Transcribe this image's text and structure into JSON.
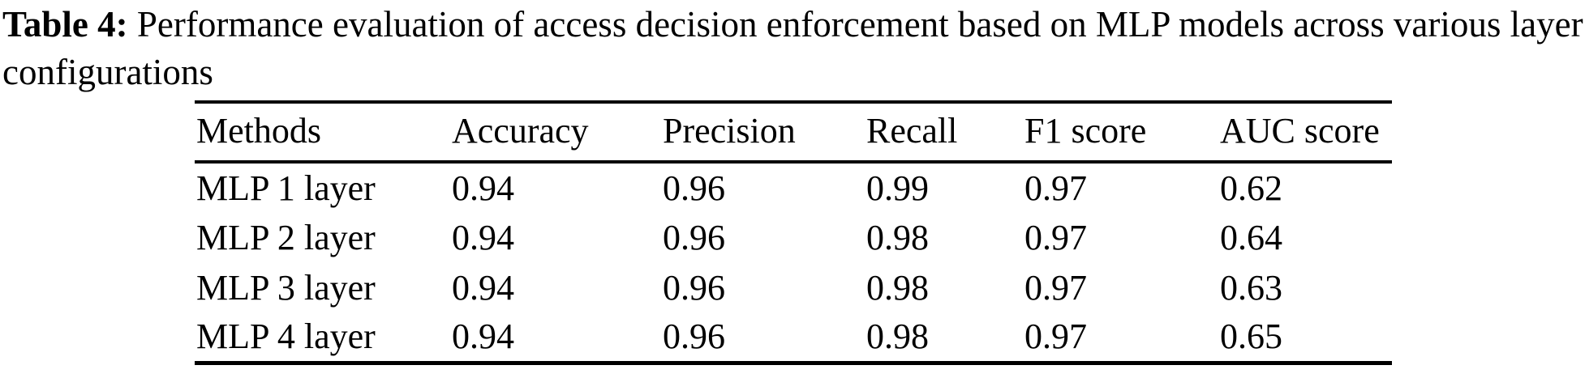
{
  "caption": {
    "label": "Table 4:",
    "text": " Performance evaluation of access decision enforcement based on MLP models across various layer configurations"
  },
  "table": {
    "columns": [
      "Methods",
      "Accuracy",
      "Precision",
      "Recall",
      "F1 score",
      "AUC score"
    ],
    "rows": [
      {
        "cells": [
          "MLP 1 layer",
          "0.94",
          "0.96",
          "0.99",
          "0.97",
          "0.62"
        ]
      },
      {
        "cells": [
          "MLP 2 layer",
          "0.94",
          "0.96",
          "0.98",
          "0.97",
          "0.64"
        ]
      },
      {
        "cells": [
          "MLP 3 layer",
          "0.94",
          "0.96",
          "0.98",
          "0.97",
          "0.63"
        ]
      },
      {
        "cells": [
          "MLP 4 layer",
          "0.94",
          "0.96",
          "0.98",
          "0.97",
          "0.65"
        ]
      }
    ]
  },
  "colors": {
    "text": "#000000",
    "background": "#ffffff",
    "rule": "#000000"
  }
}
